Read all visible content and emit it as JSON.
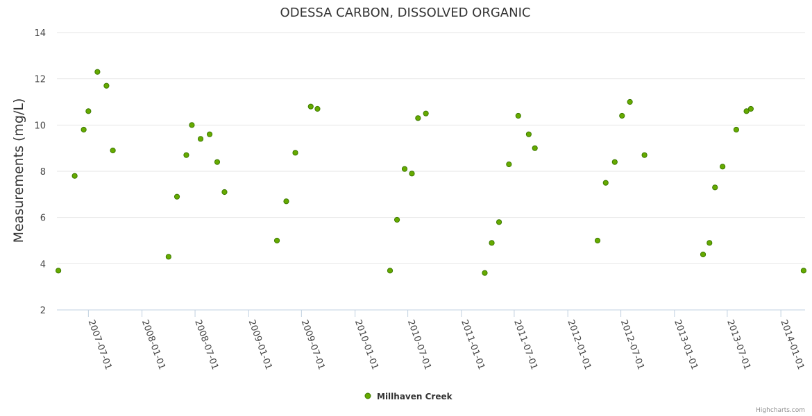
{
  "chart_data": {
    "type": "scatter",
    "title": "ODESSA CARBON, DISSOLVED ORGANIC",
    "xlabel": "",
    "ylabel": "Measurements (mg/L)",
    "ylim": [
      2,
      14
    ],
    "yticks": [
      2,
      4,
      6,
      8,
      10,
      12,
      14
    ],
    "xlim": [
      "2007-03-15",
      "2014-03-25"
    ],
    "xticks": [
      "2007-07-01",
      "2008-01-01",
      "2008-07-01",
      "2009-01-01",
      "2009-07-01",
      "2010-01-01",
      "2010-07-01",
      "2011-01-01",
      "2011-07-01",
      "2012-01-01",
      "2012-07-01",
      "2013-01-01",
      "2013-07-01",
      "2014-01-01"
    ],
    "grid": true,
    "legend": "bottom-center",
    "series": [
      {
        "name": "Millhaven Creek",
        "color": "#66aa00",
        "points": [
          [
            "2007-03-20",
            3.7
          ],
          [
            "2007-05-15",
            7.8
          ],
          [
            "2007-06-15",
            9.8
          ],
          [
            "2007-07-01",
            10.6
          ],
          [
            "2007-08-01",
            12.3
          ],
          [
            "2007-09-01",
            11.7
          ],
          [
            "2007-09-23",
            8.9
          ],
          [
            "2008-04-01",
            4.3
          ],
          [
            "2008-04-30",
            6.9
          ],
          [
            "2008-06-01",
            8.7
          ],
          [
            "2008-06-20",
            10.0
          ],
          [
            "2008-07-20",
            9.4
          ],
          [
            "2008-08-20",
            9.6
          ],
          [
            "2008-09-15",
            8.4
          ],
          [
            "2008-10-10",
            7.1
          ],
          [
            "2009-04-08",
            5.0
          ],
          [
            "2009-05-10",
            6.7
          ],
          [
            "2009-06-10",
            8.8
          ],
          [
            "2009-08-02",
            10.8
          ],
          [
            "2009-08-25",
            10.7
          ],
          [
            "2010-05-01",
            3.7
          ],
          [
            "2010-05-25",
            5.9
          ],
          [
            "2010-06-20",
            8.1
          ],
          [
            "2010-07-15",
            7.9
          ],
          [
            "2010-08-05",
            10.3
          ],
          [
            "2010-09-01",
            10.5
          ],
          [
            "2011-03-22",
            3.6
          ],
          [
            "2011-04-15",
            4.9
          ],
          [
            "2011-05-10",
            5.8
          ],
          [
            "2011-06-13",
            8.3
          ],
          [
            "2011-07-15",
            10.4
          ],
          [
            "2011-08-20",
            9.6
          ],
          [
            "2011-09-10",
            9.0
          ],
          [
            "2012-04-12",
            5.0
          ],
          [
            "2012-05-10",
            7.5
          ],
          [
            "2012-06-10",
            8.4
          ],
          [
            "2012-07-05",
            10.4
          ],
          [
            "2012-08-01",
            11.0
          ],
          [
            "2012-09-20",
            8.7
          ],
          [
            "2013-04-09",
            4.4
          ],
          [
            "2013-05-01",
            4.9
          ],
          [
            "2013-05-20",
            7.3
          ],
          [
            "2013-06-15",
            8.2
          ],
          [
            "2013-08-01",
            9.8
          ],
          [
            "2013-09-05",
            10.6
          ],
          [
            "2013-09-20",
            10.7
          ],
          [
            "2014-03-20",
            3.7
          ]
        ]
      }
    ]
  },
  "credits": "Highcharts.com"
}
